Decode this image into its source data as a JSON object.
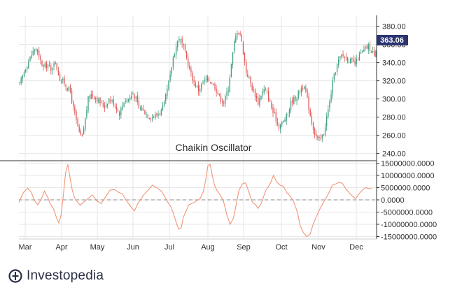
{
  "chart_data": {
    "type": "candlestick",
    "title": "",
    "indicator_title": "Chaikin Oscillator",
    "current_price_label": "363.06",
    "price_axis": {
      "ticks": [
        "380.00",
        "360.00",
        "340.00",
        "320.00",
        "300.00",
        "280.00",
        "260.00",
        "240.00"
      ],
      "range": [
        232,
        392
      ]
    },
    "oscillator_axis": {
      "ticks": [
        "15000000.0000",
        "10000000.0000",
        "5000000.0000",
        "0.0000",
        "-5000000.0000",
        "-10000000.0000",
        "-15000000.0000"
      ],
      "range": [
        -16000000,
        16000000
      ]
    },
    "x_labels": [
      "Mar",
      "Apr",
      "May",
      "Jun",
      "Jul",
      "Aug",
      "Sep",
      "Oct",
      "Nov",
      "Dec"
    ],
    "colors": {
      "up": "#3d9e7e",
      "down": "#e05a5a",
      "oscillator": "#f0957a",
      "zero_line": "#888888",
      "badge": "#2a3470",
      "grid": "#e6e6e6"
    },
    "price_close_path": [
      [
        0,
        316
      ],
      [
        3,
        330
      ],
      [
        6,
        342
      ],
      [
        9,
        352
      ],
      [
        11,
        356
      ],
      [
        13,
        345
      ],
      [
        16,
        335
      ],
      [
        19,
        338
      ],
      [
        21,
        330
      ],
      [
        23,
        342
      ],
      [
        25,
        334
      ],
      [
        27,
        322
      ],
      [
        30,
        318
      ],
      [
        32,
        312
      ],
      [
        34,
        308
      ],
      [
        36,
        290
      ],
      [
        38,
        276
      ],
      [
        40,
        262
      ],
      [
        42,
        258
      ],
      [
        44,
        278
      ],
      [
        46,
        300
      ],
      [
        48,
        305
      ],
      [
        51,
        302
      ],
      [
        54,
        296
      ],
      [
        57,
        292
      ],
      [
        60,
        300
      ],
      [
        63,
        296
      ],
      [
        65,
        290
      ],
      [
        67,
        284
      ],
      [
        70,
        298
      ],
      [
        73,
        300
      ],
      [
        76,
        306
      ],
      [
        78,
        300
      ],
      [
        80,
        290
      ],
      [
        83,
        288
      ],
      [
        86,
        282
      ],
      [
        89,
        280
      ],
      [
        92,
        283
      ],
      [
        95,
        287
      ],
      [
        97,
        294
      ],
      [
        99,
        310
      ],
      [
        101,
        325
      ],
      [
        103,
        346
      ],
      [
        105,
        358
      ],
      [
        107,
        368
      ],
      [
        110,
        356
      ],
      [
        112,
        345
      ],
      [
        114,
        332
      ],
      [
        117,
        318
      ],
      [
        120,
        310
      ],
      [
        123,
        318
      ],
      [
        126,
        322
      ],
      [
        129,
        318
      ],
      [
        131,
        314
      ],
      [
        133,
        306
      ],
      [
        135,
        300
      ],
      [
        137,
        296
      ],
      [
        140,
        312
      ],
      [
        142,
        338
      ],
      [
        144,
        362
      ],
      [
        146,
        375
      ],
      [
        148,
        372
      ],
      [
        150,
        352
      ],
      [
        152,
        330
      ],
      [
        154,
        322
      ],
      [
        156,
        312
      ],
      [
        158,
        305
      ],
      [
        160,
        296
      ],
      [
        162,
        305
      ],
      [
        164,
        310
      ],
      [
        166,
        306
      ],
      [
        168,
        296
      ],
      [
        170,
        285
      ],
      [
        172,
        278
      ],
      [
        174,
        270
      ],
      [
        177,
        275
      ],
      [
        180,
        284
      ],
      [
        182,
        296
      ],
      [
        184,
        300
      ],
      [
        186,
        302
      ],
      [
        188,
        310
      ],
      [
        190,
        314
      ],
      [
        192,
        308
      ],
      [
        194,
        290
      ],
      [
        196,
        275
      ],
      [
        198,
        262
      ],
      [
        200,
        255
      ],
      [
        202,
        256
      ],
      [
        204,
        262
      ],
      [
        206,
        280
      ],
      [
        208,
        296
      ],
      [
        210,
        318
      ],
      [
        212,
        332
      ],
      [
        214,
        342
      ],
      [
        216,
        348
      ],
      [
        219,
        346
      ],
      [
        222,
        342
      ],
      [
        225,
        338
      ],
      [
        227,
        345
      ],
      [
        229,
        350
      ],
      [
        232,
        355
      ],
      [
        234,
        358
      ],
      [
        236,
        352
      ],
      [
        238,
        350
      ],
      [
        240,
        362
      ]
    ],
    "oscillator_path": [
      [
        0,
        -1000000
      ],
      [
        4,
        3000000
      ],
      [
        8,
        4800000
      ],
      [
        11,
        3200000
      ],
      [
        14,
        -300000
      ],
      [
        17,
        -2000000
      ],
      [
        20,
        200000
      ],
      [
        23,
        3600000
      ],
      [
        26,
        1000000
      ],
      [
        28,
        -1500000
      ],
      [
        31,
        -3500000
      ],
      [
        34,
        -7500000
      ],
      [
        36,
        -9500000
      ],
      [
        38,
        -6000000
      ],
      [
        40,
        2000000
      ],
      [
        42,
        11000000
      ],
      [
        44,
        14500000
      ],
      [
        46,
        9000000
      ],
      [
        48,
        4000000
      ],
      [
        50,
        1000000
      ],
      [
        52,
        -500000
      ],
      [
        55,
        -2200000
      ],
      [
        58,
        -1000000
      ],
      [
        62,
        500000
      ],
      [
        66,
        2000000
      ],
      [
        70,
        -400000
      ],
      [
        74,
        -1500000
      ],
      [
        78,
        1200000
      ],
      [
        82,
        4000000
      ],
      [
        86,
        4200000
      ],
      [
        90,
        3000000
      ],
      [
        93,
        2500000
      ],
      [
        97,
        -500000
      ],
      [
        101,
        -3000000
      ],
      [
        104,
        -4500000
      ],
      [
        107,
        -1500000
      ],
      [
        110,
        500000
      ],
      [
        113,
        2500000
      ],
      [
        116,
        3800000
      ],
      [
        120,
        6000000
      ],
      [
        124,
        5000000
      ],
      [
        128,
        3600000
      ],
      [
        131,
        1500000
      ],
      [
        134,
        -1000000
      ],
      [
        137,
        -3000000
      ],
      [
        140,
        -7000000
      ],
      [
        142,
        -10000000
      ],
      [
        144,
        -12000000
      ],
      [
        146,
        -11500000
      ],
      [
        148,
        -7000000
      ],
      [
        150,
        -5000000
      ],
      [
        153,
        -2000000
      ],
      [
        157,
        -1200000
      ],
      [
        160,
        -300000
      ],
      [
        163,
        500000
      ],
      [
        166,
        3500000
      ],
      [
        168,
        8000000
      ],
      [
        170,
        14000000
      ],
      [
        172,
        14500000
      ],
      [
        174,
        10000000
      ],
      [
        176,
        6000000
      ],
      [
        178,
        4000000
      ],
      [
        181,
        2000000
      ],
      [
        184,
        -500000
      ],
      [
        187,
        -6000000
      ],
      [
        190,
        -10000000
      ],
      [
        193,
        -7500000
      ],
      [
        195,
        -3000000
      ],
      [
        198,
        4000000
      ],
      [
        201,
        6500000
      ],
      [
        204,
        7000000
      ],
      [
        207,
        3000000
      ],
      [
        210,
        -1000000
      ],
      [
        213,
        -2000000
      ],
      [
        215,
        -3500000
      ],
      [
        218,
        -1500000
      ],
      [
        222,
        3800000
      ],
      [
        226,
        6500000
      ],
      [
        229,
        10000000
      ],
      [
        232,
        7200000
      ],
      [
        235,
        6000000
      ],
      [
        238,
        5500000
      ],
      [
        241,
        3000000
      ],
      [
        244,
        1500000
      ],
      [
        247,
        -500000
      ],
      [
        249,
        -3000000
      ],
      [
        251,
        -6000000
      ],
      [
        253,
        -10500000
      ],
      [
        256,
        -13500000
      ],
      [
        259,
        -15000000
      ],
      [
        262,
        -14000000
      ],
      [
        265,
        -9500000
      ],
      [
        268,
        -6500000
      ],
      [
        271,
        -3500000
      ],
      [
        274,
        -1000000
      ],
      [
        276,
        500000
      ],
      [
        279,
        3000000
      ],
      [
        282,
        6000000
      ],
      [
        285,
        6500000
      ],
      [
        288,
        7200000
      ],
      [
        291,
        6800000
      ],
      [
        294,
        4500000
      ],
      [
        297,
        3000000
      ],
      [
        300,
        1500000
      ],
      [
        303,
        500000
      ],
      [
        306,
        2500000
      ],
      [
        309,
        4000000
      ],
      [
        312,
        5000000
      ],
      [
        315,
        4600000
      ],
      [
        318,
        4500000
      ]
    ]
  },
  "brand": {
    "name": "Investopedia"
  }
}
